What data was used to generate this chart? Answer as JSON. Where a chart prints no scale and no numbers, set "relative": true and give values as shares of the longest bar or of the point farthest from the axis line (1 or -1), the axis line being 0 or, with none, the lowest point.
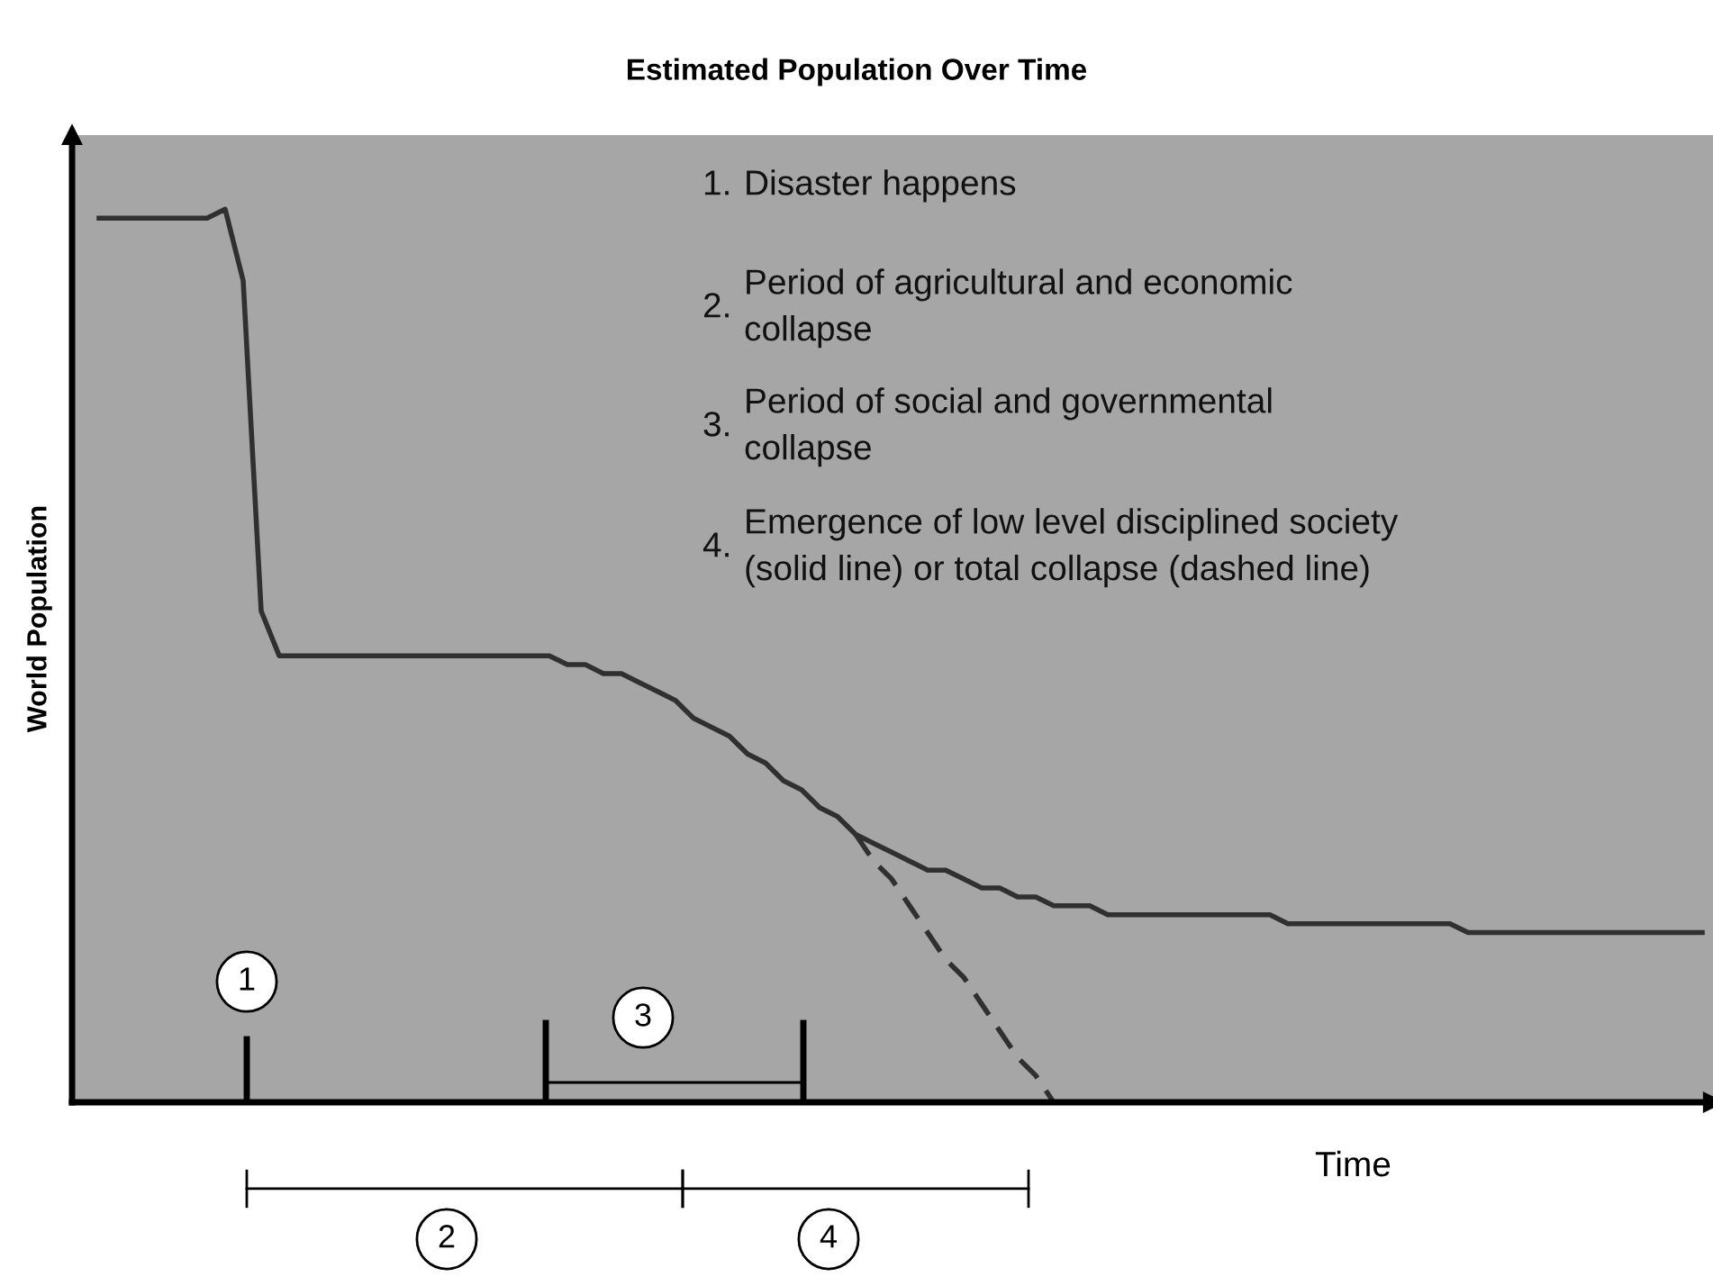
{
  "chart_data": {
    "type": "line",
    "title": "Estimated Population Over Time",
    "xlabel": "Time",
    "ylabel": "World Population",
    "relative": true,
    "categories": [
      null,
      null,
      null,
      null,
      null,
      null,
      null,
      null,
      null,
      null,
      null,
      null,
      null,
      null,
      null,
      null,
      null,
      null,
      null,
      null,
      null,
      null,
      null,
      null,
      null,
      null,
      null,
      null,
      null,
      null,
      null,
      null,
      null,
      null,
      null,
      null,
      null,
      null,
      null,
      null,
      null,
      null,
      null,
      null,
      null,
      null,
      null,
      null,
      null,
      null,
      null,
      null,
      null,
      null,
      null,
      null,
      null,
      null,
      null,
      null,
      null,
      null,
      null,
      null,
      null,
      null,
      null,
      null,
      null,
      null,
      null,
      null,
      null,
      null,
      null,
      null,
      null,
      null,
      null,
      null,
      null,
      null,
      null,
      null,
      null,
      null,
      null,
      null,
      null,
      null
    ],
    "series": [
      {
        "color": "#303030",
        "line_style": "solid",
        "values": [
          0.99,
          0.99,
          0.99,
          0.99,
          0.99,
          0.99,
          0.99,
          1.0,
          0.92,
          0.55,
          0.5,
          0.5,
          0.5,
          0.5,
          0.5,
          0.5,
          0.5,
          0.5,
          0.5,
          0.5,
          0.5,
          0.5,
          0.5,
          0.5,
          0.5,
          0.5,
          0.49,
          0.49,
          0.48,
          0.48,
          0.47,
          0.46,
          0.45,
          0.43,
          0.42,
          0.41,
          0.39,
          0.38,
          0.36,
          0.35,
          0.33,
          0.32,
          0.3,
          0.29,
          0.28,
          0.27,
          0.26,
          0.26,
          0.25,
          0.24,
          0.24,
          0.23,
          0.23,
          0.22,
          0.22,
          0.22,
          0.21,
          0.21,
          0.21,
          0.21,
          0.21,
          0.21,
          0.21,
          0.21,
          0.21,
          0.21,
          0.2,
          0.2,
          0.2,
          0.2,
          0.2,
          0.2,
          0.2,
          0.2,
          0.2,
          0.2,
          0.19,
          0.19,
          0.19,
          0.19,
          0.19,
          0.19,
          0.19,
          0.19,
          0.19,
          0.19,
          0.19,
          0.19,
          0.19,
          0.19
        ]
      },
      {
        "color": "#303030",
        "line_style": "dashed",
        "values": [
          null,
          null,
          null,
          null,
          null,
          null,
          null,
          null,
          null,
          null,
          null,
          null,
          null,
          null,
          null,
          null,
          null,
          null,
          null,
          null,
          null,
          null,
          null,
          null,
          null,
          null,
          null,
          null,
          null,
          null,
          null,
          null,
          null,
          null,
          null,
          null,
          null,
          null,
          null,
          null,
          null,
          null,
          0.3,
          0.27,
          0.25,
          0.22,
          0.19,
          0.16,
          0.14,
          0.11,
          0.08,
          0.05,
          0.03,
          0.0,
          null,
          null,
          null,
          null,
          null,
          null,
          null,
          null,
          null,
          null,
          null,
          null,
          null,
          null,
          null,
          null,
          null,
          null,
          null,
          null,
          null,
          null,
          null,
          null,
          null,
          null,
          null,
          null,
          null,
          null,
          null,
          null,
          null,
          null,
          null,
          null
        ]
      }
    ],
    "annotations": [
      "1. Disaster happens",
      "2. Period of agricultural and economic\ncollapse",
      "3. Period of social and governmental\ncollapse",
      "4. Emergence of low level disciplined society\n(solid line) or total collapse (dashed line)",
      "1",
      "2",
      "3",
      "4"
    ]
  }
}
